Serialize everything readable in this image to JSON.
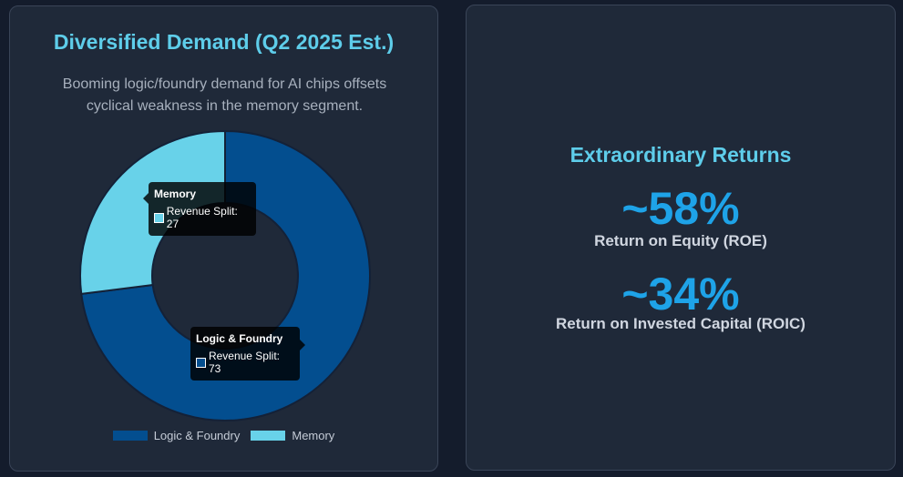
{
  "left_card": {
    "title": "Diversified Demand (Q2 2025 Est.)",
    "subtitle": "Booming logic/foundry demand for AI chips offsets cyclical weakness in the memory segment."
  },
  "chart_data": {
    "type": "pie",
    "variant": "doughnut",
    "title": "Diversified Demand (Q2 2025 Est.)",
    "categories": [
      "Logic & Foundry",
      "Memory"
    ],
    "series": [
      {
        "name": "Revenue Split",
        "values": [
          73,
          27
        ]
      }
    ],
    "colors": [
      "#034e8f",
      "#68d2e9"
    ],
    "legend": "bottom",
    "tooltips": [
      {
        "title": "Logic & Foundry",
        "label": "Revenue Split: 73",
        "color": "#034e8f"
      },
      {
        "title": "Memory",
        "label": "Revenue Split: 27",
        "color": "#68d2e9"
      }
    ]
  },
  "right_card": {
    "title": "Extraordinary Returns",
    "metrics": [
      {
        "value": "~58%",
        "label": "Return on Equity (ROE)"
      },
      {
        "value": "~34%",
        "label": "Return on Invested Capital (ROIC)"
      }
    ],
    "accent_color": "#1ea3e8"
  }
}
